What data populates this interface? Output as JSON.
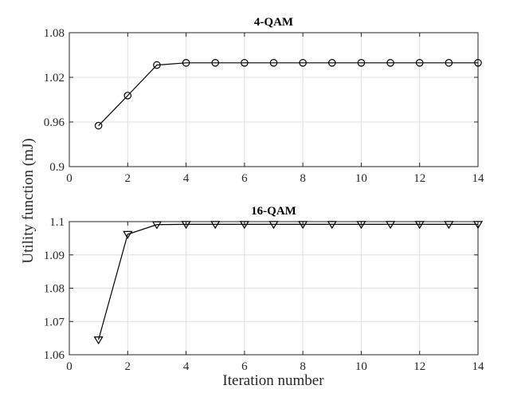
{
  "chart_data": [
    {
      "type": "line",
      "title": "4-QAM",
      "x": [
        1,
        2,
        3,
        4,
        5,
        6,
        7,
        8,
        9,
        10,
        11,
        12,
        13,
        14
      ],
      "series": [
        {
          "values": [
            0.955,
            0.9955,
            1.0365,
            1.0395,
            1.0395,
            1.0395,
            1.0395,
            1.0395,
            1.0395,
            1.0395,
            1.0395,
            1.0395,
            1.0395,
            1.0395
          ],
          "marker": "circle",
          "color": "#000000"
        }
      ],
      "xlim": [
        0,
        14
      ],
      "ylim": [
        0.9,
        1.08
      ],
      "xticks": [
        0,
        2,
        4,
        6,
        8,
        10,
        12,
        14
      ],
      "yticks": [
        0.9,
        0.96,
        1.02,
        1.08
      ],
      "xtick_labels": [
        "0",
        "2",
        "4",
        "6",
        "8",
        "10",
        "12",
        "14"
      ],
      "ytick_labels": [
        "0.9",
        "0.96",
        "1.02",
        "1.08"
      ],
      "grid": true
    },
    {
      "type": "line",
      "title": "16-QAM",
      "x": [
        1,
        2,
        3,
        4,
        5,
        6,
        7,
        8,
        9,
        10,
        11,
        12,
        13,
        14
      ],
      "series": [
        {
          "values": [
            1.0645,
            1.0962,
            1.0991,
            1.0992,
            1.0992,
            1.0992,
            1.0992,
            1.0992,
            1.0992,
            1.0992,
            1.0992,
            1.0992,
            1.0992,
            1.0992
          ],
          "marker": "triangle-down",
          "color": "#000000"
        }
      ],
      "xlim": [
        0,
        14
      ],
      "ylim": [
        1.06,
        1.1
      ],
      "xticks": [
        0,
        2,
        4,
        6,
        8,
        10,
        12,
        14
      ],
      "yticks": [
        1.06,
        1.07,
        1.08,
        1.09,
        1.1
      ],
      "xtick_labels": [
        "0",
        "2",
        "4",
        "6",
        "8",
        "10",
        "12",
        "14"
      ],
      "ytick_labels": [
        "1.06",
        "1.07",
        "1.08",
        "1.09",
        "1.1"
      ],
      "grid": true
    }
  ],
  "labels": {
    "ylabel": "Utility function (mJ)",
    "xlabel": "Iteration number"
  }
}
